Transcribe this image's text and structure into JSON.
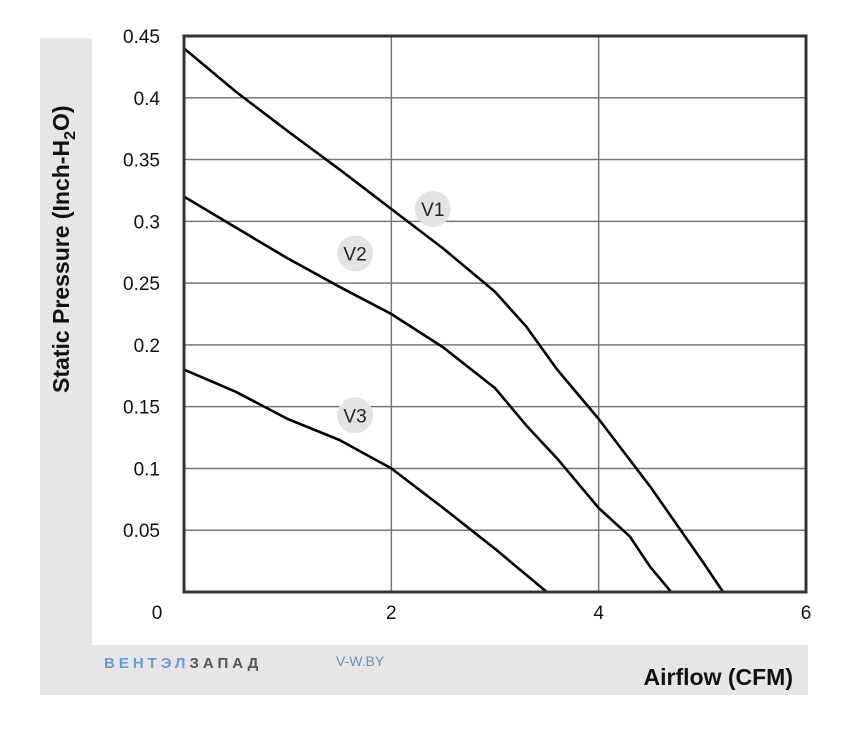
{
  "chart_data": {
    "type": "line",
    "xlabel": "Airflow (CFM)",
    "ylabel": "Static Pressure (Inch-H2O)",
    "xlim": [
      0,
      6
    ],
    "ylim": [
      0,
      0.45
    ],
    "xticks": [
      0,
      2,
      4,
      6
    ],
    "xtick_labels": [
      "0",
      "2",
      "4",
      "6"
    ],
    "yticks": [
      0.05,
      0.1,
      0.15,
      0.2,
      0.25,
      0.3,
      0.35,
      0.4,
      0.45
    ],
    "ytick_labels": [
      "0.05",
      "0.1",
      "0.15",
      "0.2",
      "0.25",
      "0.3",
      "0.35",
      "0.4",
      "0.45"
    ],
    "grid": true,
    "series": [
      {
        "name": "V1",
        "x": [
          0,
          0.5,
          1.0,
          1.5,
          2.0,
          2.5,
          3.0,
          3.3,
          3.6,
          4.0,
          4.5,
          5.0,
          5.2
        ],
        "y": [
          0.44,
          0.405,
          0.373,
          0.342,
          0.31,
          0.278,
          0.243,
          0.215,
          0.18,
          0.14,
          0.085,
          0.025,
          0
        ]
      },
      {
        "name": "V2",
        "x": [
          0,
          0.5,
          1.0,
          1.5,
          2.0,
          2.5,
          3.0,
          3.3,
          3.6,
          4.0,
          4.3,
          4.5,
          4.7
        ],
        "y": [
          0.32,
          0.295,
          0.27,
          0.247,
          0.225,
          0.198,
          0.165,
          0.135,
          0.108,
          0.068,
          0.045,
          0.02,
          0
        ]
      },
      {
        "name": "V3",
        "x": [
          0,
          0.5,
          1.0,
          1.5,
          2.0,
          2.5,
          3.0,
          3.5
        ],
        "y": [
          0.18,
          0.162,
          0.14,
          0.123,
          0.1,
          0.068,
          0.035,
          0
        ]
      }
    ],
    "curve_labels": [
      {
        "text": "V1",
        "x": 2.4,
        "y": 0.31
      },
      {
        "text": "V2",
        "x": 1.65,
        "y": 0.274
      },
      {
        "text": "V3",
        "x": 1.65,
        "y": 0.143
      }
    ],
    "colors": {
      "line": "#000000",
      "grid": "#777777",
      "frame": "#333333",
      "band": "#e6e6e6",
      "label_bubble": "#e3e3e3"
    }
  },
  "brand": {
    "part1": "ВЕНТЭЛ",
    "part2": "ЗАПАД",
    "part1_color": "#6c9bd2",
    "part2_color": "#555555",
    "site": "V-W.BY"
  }
}
